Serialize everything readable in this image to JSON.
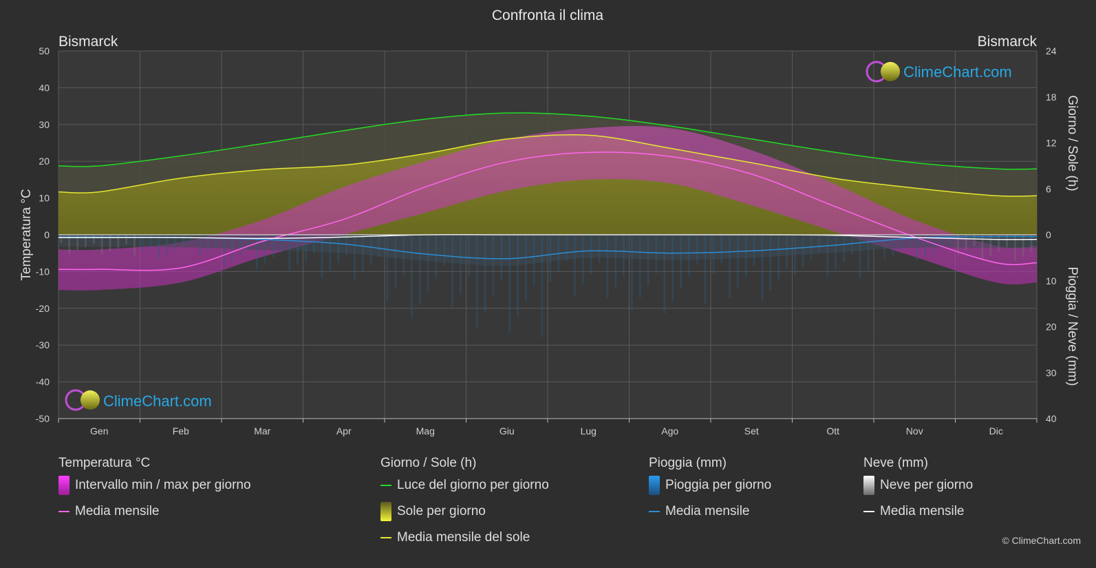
{
  "chart_data": {
    "type": "area",
    "title": "Confronta il clima",
    "location_left": "Bismarck",
    "location_right": "Bismarck",
    "months": [
      "Gen",
      "Feb",
      "Mar",
      "Apr",
      "Mag",
      "Giu",
      "Lug",
      "Ago",
      "Set",
      "Ott",
      "Nov",
      "Dic"
    ],
    "y_left": {
      "label": "Temperatura °C",
      "min": -50,
      "max": 50,
      "ticks": [
        50,
        40,
        30,
        20,
        10,
        0,
        -10,
        -20,
        -30,
        -40,
        -50
      ]
    },
    "y_right_top": {
      "label": "Giorno / Sole (h)",
      "min": 0,
      "max": 24,
      "ticks": [
        24,
        18,
        12,
        6,
        0
      ]
    },
    "y_right_bottom": {
      "label": "Pioggia / Neve (mm)",
      "min": 0,
      "max": 40,
      "ticks": [
        0,
        10,
        20,
        30,
        40
      ]
    },
    "series": [
      {
        "name": "Luce del giorno per giorno",
        "unit": "h",
        "color": "#22dd22",
        "values": [
          9.0,
          10.3,
          11.9,
          13.6,
          15.1,
          15.9,
          15.5,
          14.2,
          12.5,
          10.8,
          9.4,
          8.6
        ]
      },
      {
        "name": "Media mensile del sole",
        "unit": "h",
        "color": "#e6e633",
        "values": [
          5.6,
          7.4,
          8.5,
          9.1,
          10.6,
          12.5,
          13.0,
          11.3,
          9.4,
          7.4,
          6.1,
          5.1
        ]
      },
      {
        "name": "Media mensile (temperatura)",
        "unit": "°C",
        "color": "#ff66ee",
        "values": [
          -9.4,
          -9.0,
          -1.8,
          4.2,
          13.0,
          19.8,
          22.4,
          21.3,
          16.5,
          7.9,
          -0.6,
          -7.6
        ]
      },
      {
        "name": "Media mensile (pioggia)",
        "unit": "mm",
        "color": "#2a8fd6",
        "values": [
          0.5,
          0.6,
          1.0,
          2.0,
          4.2,
          5.2,
          3.5,
          4.0,
          3.5,
          2.3,
          0.7,
          0.4
        ]
      },
      {
        "name": "Media mensile (neve)",
        "unit": "mm",
        "color": "#ffffff",
        "values": [
          0.6,
          0.6,
          0.8,
          0.5,
          0.0,
          0.0,
          0.0,
          0.0,
          0.0,
          0.1,
          0.6,
          1.0
        ]
      }
    ],
    "temp_min_daily_avg": [
      -15,
      -13,
      -6,
      0,
      6,
      12,
      15,
      14,
      8,
      1,
      -6,
      -13
    ],
    "temp_max_daily_avg": [
      -4,
      -2,
      4,
      13,
      20,
      26,
      29,
      29,
      23,
      14,
      4,
      -3
    ],
    "grid": true
  },
  "legend": {
    "temp": {
      "title": "Temperatura °C",
      "range": "Intervallo min / max per giorno",
      "mean": "Media mensile"
    },
    "sun": {
      "title": "Giorno / Sole (h)",
      "daylight": "Luce del giorno per giorno",
      "sun_day": "Sole per giorno",
      "sun_mean": "Media mensile del sole"
    },
    "rain": {
      "title": "Pioggia (mm)",
      "rain_day": "Pioggia per giorno",
      "mean": "Media mensile"
    },
    "snow": {
      "title": "Neve (mm)",
      "snow_day": "Neve per giorno",
      "mean": "Media mensile"
    }
  },
  "branding": {
    "logo_text": "ClimeChart.com",
    "copyright": "© ClimeChart.com"
  }
}
